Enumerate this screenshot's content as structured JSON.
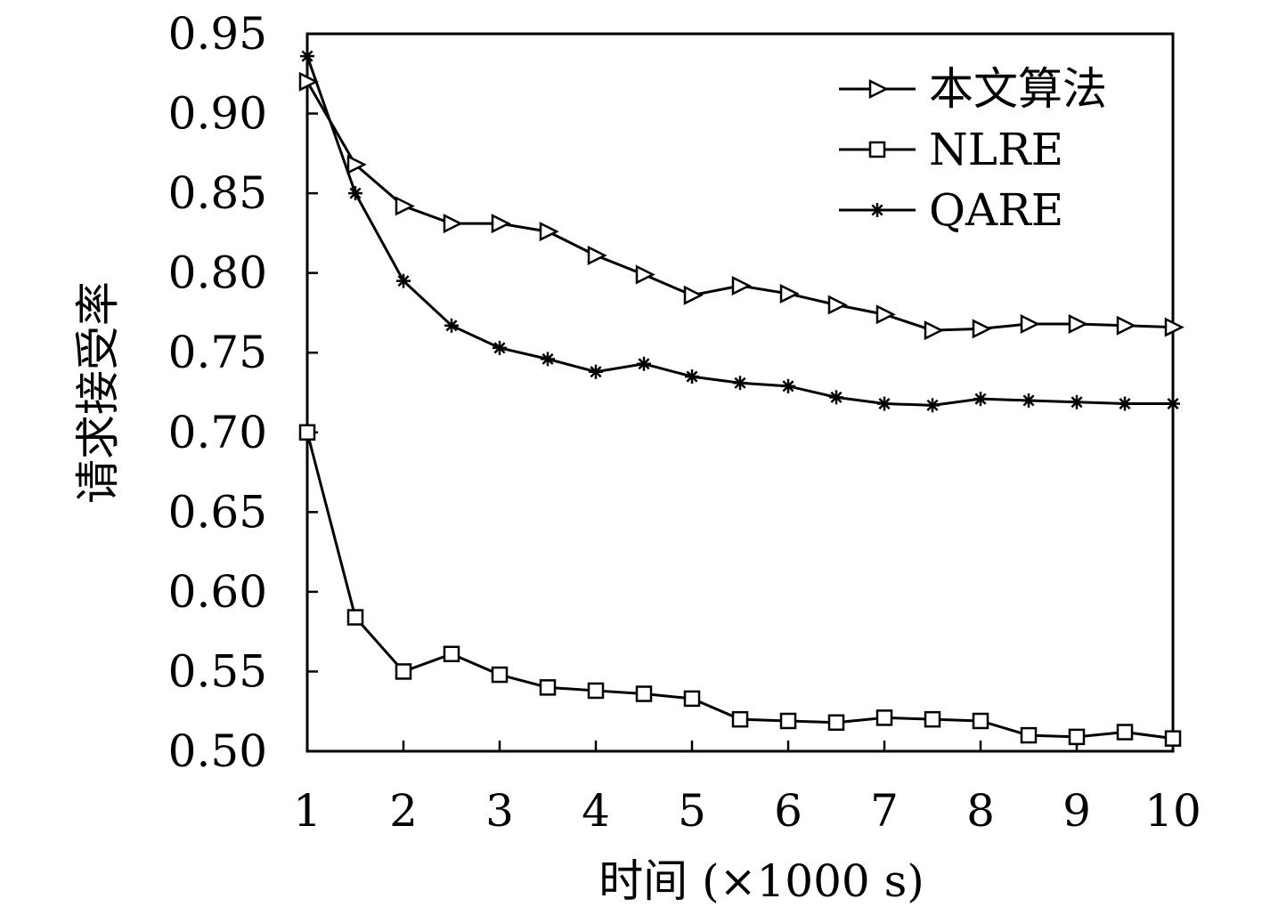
{
  "chart_data": {
    "type": "line",
    "xlabel": "时间 (×1000 s)",
    "ylabel": "请求接受率",
    "xlim": [
      1,
      10
    ],
    "ylim": [
      0.5,
      0.95
    ],
    "xticks": [
      "1",
      "2",
      "3",
      "4",
      "5",
      "6",
      "7",
      "8",
      "9",
      "10"
    ],
    "yticks": [
      "0.50",
      "0.55",
      "0.60",
      "0.65",
      "0.70",
      "0.75",
      "0.80",
      "0.85",
      "0.90",
      "0.95"
    ],
    "grid": false,
    "legend_position": "top-right",
    "x": [
      1,
      1.5,
      2,
      2.5,
      3,
      3.5,
      4,
      4.5,
      5,
      5.5,
      6,
      6.5,
      7,
      7.5,
      8,
      8.5,
      9,
      9.5,
      10
    ],
    "series": [
      {
        "name": "本文算法",
        "marker": "triangle-right",
        "values": [
          0.92,
          0.868,
          0.842,
          0.831,
          0.831,
          0.826,
          0.811,
          0.799,
          0.786,
          0.792,
          0.787,
          0.78,
          0.774,
          0.764,
          0.765,
          0.768,
          0.768,
          0.767,
          0.766
        ]
      },
      {
        "name": "NLRE",
        "marker": "square",
        "values": [
          0.7,
          0.584,
          0.55,
          0.561,
          0.548,
          0.54,
          0.538,
          0.536,
          0.533,
          0.52,
          0.519,
          0.518,
          0.521,
          0.52,
          0.519,
          0.51,
          0.509,
          0.512,
          0.508
        ]
      },
      {
        "name": "QARE",
        "marker": "asterisk",
        "values": [
          0.936,
          0.85,
          0.795,
          0.767,
          0.753,
          0.746,
          0.738,
          0.743,
          0.735,
          0.731,
          0.729,
          0.722,
          0.718,
          0.717,
          0.721,
          0.72,
          0.719,
          0.718,
          0.718
        ]
      }
    ]
  }
}
